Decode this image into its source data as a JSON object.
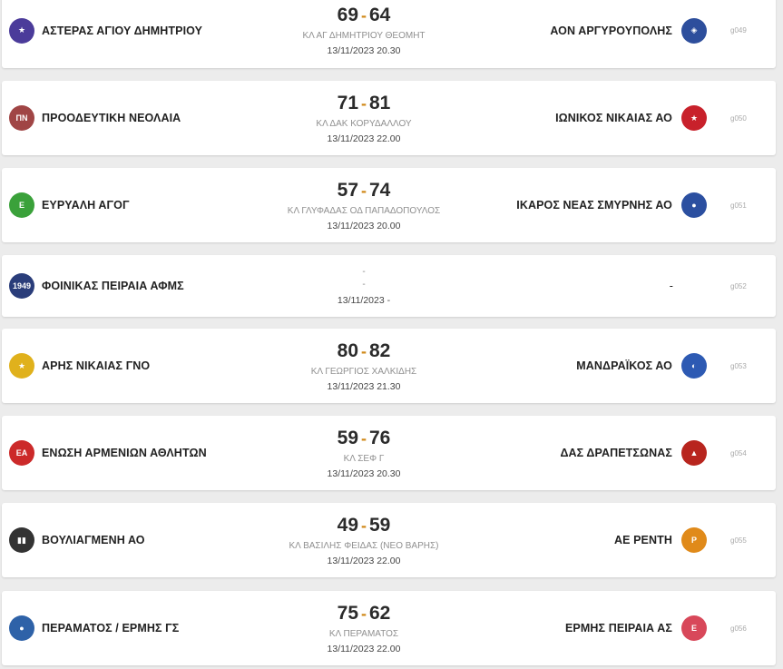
{
  "games": [
    {
      "home": {
        "name": "ΑΣΤΕΡΑΣ ΑΓΙΟΥ ΔΗΜΗΤΡΙΟΥ",
        "logo_icon": "star-logo-icon",
        "logo_glyph": "★",
        "logo_color": "#4b3b9a"
      },
      "score": {
        "home": "69",
        "away": "64"
      },
      "venue": "ΚΛ ΑΓ ΔΗΜΗΤΡΙΟΥ ΘΕΟΜΗΤ",
      "datetime": "13/11/2023 20.30",
      "away": {
        "name": "ΑΟΝ ΑΡΓΥΡΟΥΠΟΛΗΣ",
        "logo_icon": "crest-logo-icon",
        "logo_glyph": "◈",
        "logo_color": "#2d4e9c"
      },
      "code": "g049"
    },
    {
      "home": {
        "name": "ΠΡΟΟΔΕΥΤΙΚΗ ΝΕΟΛΑΙΑ",
        "logo_icon": "shield-logo-icon",
        "logo_glyph": "ΠΝ",
        "logo_color": "#a04545"
      },
      "score": {
        "home": "71",
        "away": "81"
      },
      "venue": "ΚΛ ΔΑΚ ΚΟΡΥΔΑΛΛΟΥ",
      "datetime": "13/11/2023 22.00",
      "away": {
        "name": "ΙΩΝΙΚΟΣ ΝΙΚΑΙΑΣ ΑΟ",
        "logo_icon": "star-logo-icon",
        "logo_glyph": "★",
        "logo_color": "#c8212b"
      },
      "code": "g050"
    },
    {
      "home": {
        "name": "ΕΥΡΥΑΛΗ ΑΓΟΓ",
        "logo_icon": "leaf-logo-icon",
        "logo_glyph": "Ε",
        "logo_color": "#3aa13a"
      },
      "score": {
        "home": "57",
        "away": "74"
      },
      "venue": "ΚΛ ΓΛΥΦΑΔΑΣ ΟΔ ΠΑΠΑΔΟΠΟΥΛΟΣ",
      "datetime": "13/11/2023 20.00",
      "away": {
        "name": "ΙΚΑΡΟΣ ΝΕΑΣ ΣΜΥΡΝΗΣ ΑΟ",
        "logo_icon": "ball-logo-icon",
        "logo_glyph": "●",
        "logo_color": "#2b4fa0"
      },
      "code": "g051"
    },
    {
      "home": {
        "name": "ΦΟΙΝΙΚΑΣ ΠΕΙΡΑΙΑ ΑΦΜΣ",
        "logo_icon": "circle-logo-icon",
        "logo_glyph": "1949",
        "logo_color": "#2a3d7a"
      },
      "score": {
        "home": "-",
        "away": "-"
      },
      "venue": "-",
      "datetime": "13/11/2023 -",
      "away": {
        "name": "-",
        "logo_icon": "",
        "logo_glyph": "",
        "logo_color": ""
      },
      "code": "g052",
      "pending": true
    },
    {
      "home": {
        "name": "ΑΡΗΣ ΝΙΚΑΙΑΣ ΓΝΟ",
        "logo_icon": "star-logo-icon",
        "logo_glyph": "★",
        "logo_color": "#e0b11c"
      },
      "score": {
        "home": "80",
        "away": "82"
      },
      "venue": "ΚΛ ΓΕΩΡΓΙΟΣ ΧΑΛΚΙΔΗΣ",
      "datetime": "13/11/2023 21.30",
      "away": {
        "name": "ΜΑΝΔΡΑΪΚΟΣ ΑΟ",
        "logo_icon": "shield-logo-icon",
        "logo_glyph": "◐",
        "logo_color": "#2d5ab3"
      },
      "code": "g053"
    },
    {
      "home": {
        "name": "ΕΝΩΣΗ ΑΡΜΕΝΙΩΝ ΑΘΛΗΤΩΝ",
        "logo_icon": "emblem-logo-icon",
        "logo_glyph": "ΕΑ",
        "logo_color": "#cc2a2a"
      },
      "score": {
        "home": "59",
        "away": "76"
      },
      "venue": "ΚΛ ΣΕΦ Γ",
      "datetime": "13/11/2023 20.30",
      "away": {
        "name": "ΔΑΣ ΔΡΑΠΕΤΣΩΝΑΣ",
        "logo_icon": "bird-logo-icon",
        "logo_glyph": "▲",
        "logo_color": "#b8251e"
      },
      "code": "g054"
    },
    {
      "home": {
        "name": "ΒΟΥΛΙΑΓΜΕΝΗ ΑΟ",
        "logo_icon": "shield-logo-icon",
        "logo_glyph": "▮▮",
        "logo_color": "#333333"
      },
      "score": {
        "home": "49",
        "away": "59"
      },
      "venue": "ΚΛ ΒΑΣΙΛΗΣ ΦΕΙΔΑΣ (ΝΕΟ ΒΑΡΗΣ)",
      "datetime": "13/11/2023 22.00",
      "away": {
        "name": "ΑΕ ΡΕΝΤΗ",
        "logo_icon": "circle-logo-icon",
        "logo_glyph": "Ρ",
        "logo_color": "#e08a1a"
      },
      "code": "g055"
    },
    {
      "home": {
        "name": "ΠΕΡΑΜΑΤΟΣ / ΕΡΜΗΣ ΓΣ",
        "logo_icon": "ball-logo-icon",
        "logo_glyph": "●",
        "logo_color": "#2e62a8"
      },
      "score": {
        "home": "75",
        "away": "62"
      },
      "venue": "ΚΛ ΠΕΡΑΜΑΤΟΣ",
      "datetime": "13/11/2023 22.00",
      "away": {
        "name": "ΕΡΜΗΣ ΠΕΙΡΑΙΑ ΑΣ",
        "logo_icon": "shield-logo-icon",
        "logo_glyph": "Ε",
        "logo_color": "#d8485a"
      },
      "code": "g056"
    }
  ]
}
